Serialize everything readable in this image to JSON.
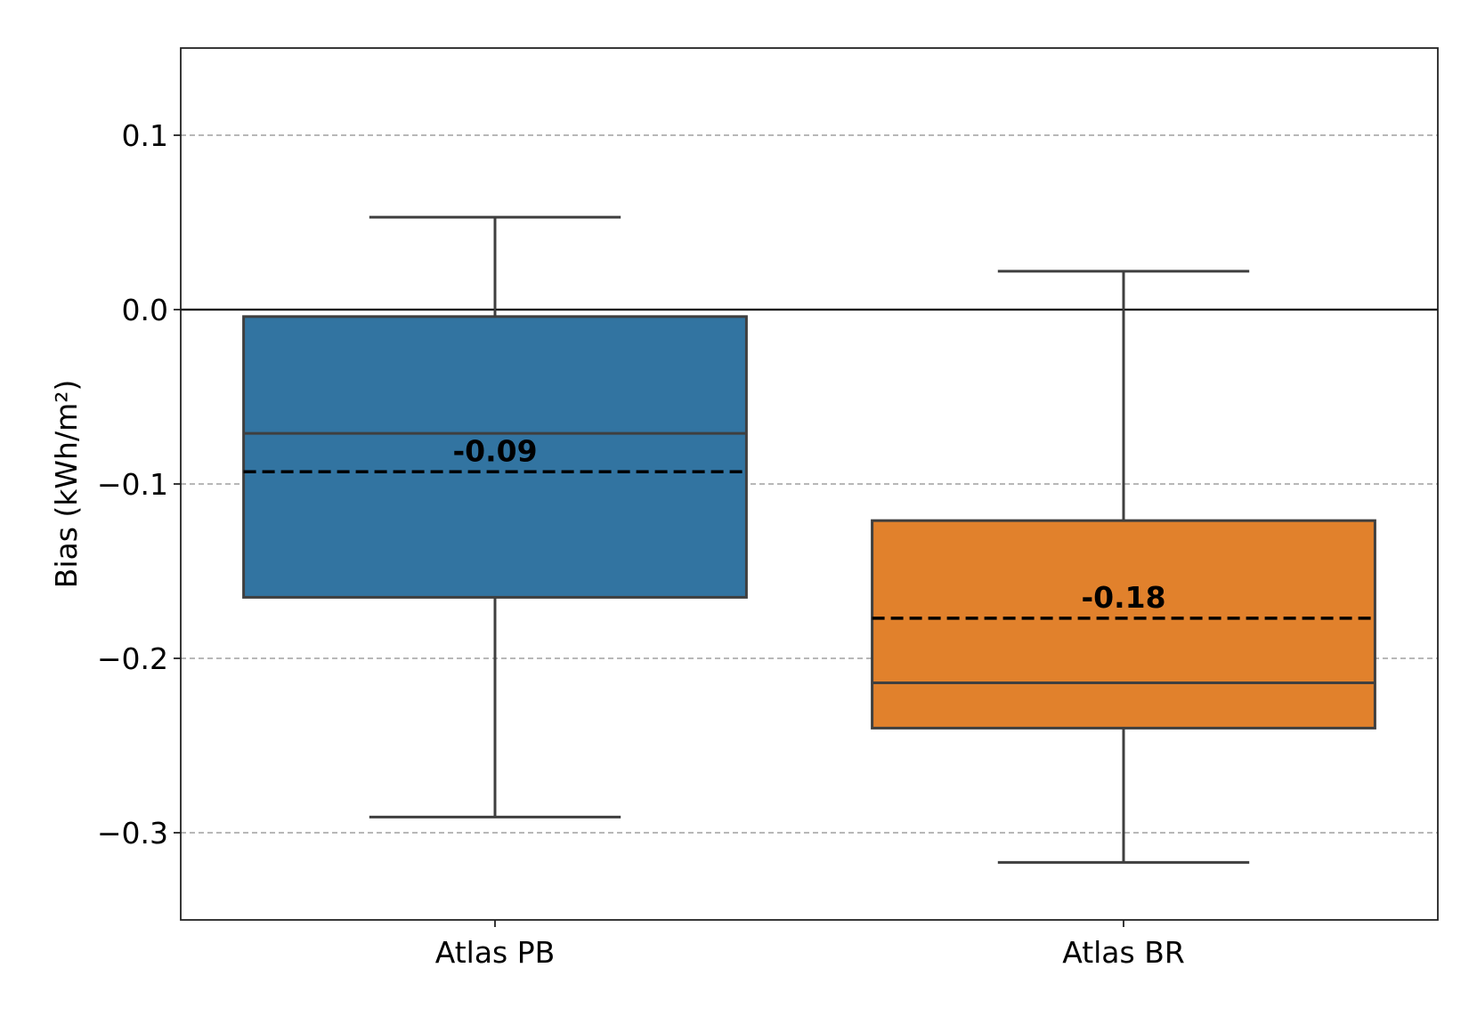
{
  "chart_data": {
    "type": "box",
    "ylabel": "Bias (kWh/m²)",
    "ylim": [
      -0.35,
      0.15
    ],
    "yticks": [
      {
        "value": 0.1,
        "label": "0.1"
      },
      {
        "value": 0.0,
        "label": "0.0"
      },
      {
        "value": -0.1,
        "label": "−0.1"
      },
      {
        "value": -0.2,
        "label": "−0.2"
      },
      {
        "value": -0.3,
        "label": "−0.3"
      }
    ],
    "grid": {
      "y": true,
      "style": "dashed"
    },
    "reference_line": 0.0,
    "categories": [
      "Atlas PB",
      "Atlas BR"
    ],
    "boxes": [
      {
        "name": "Atlas PB",
        "color": "#3274a1",
        "whisker_low": -0.291,
        "q1": -0.165,
        "median": -0.071,
        "q3": -0.004,
        "whisker_high": 0.053,
        "mean": -0.093,
        "mean_label": "-0.09"
      },
      {
        "name": "Atlas BR",
        "color": "#e1812c",
        "whisker_low": -0.317,
        "q1": -0.24,
        "median": -0.214,
        "q3": -0.121,
        "whisker_high": 0.022,
        "mean": -0.177,
        "mean_label": "-0.18"
      }
    ]
  }
}
